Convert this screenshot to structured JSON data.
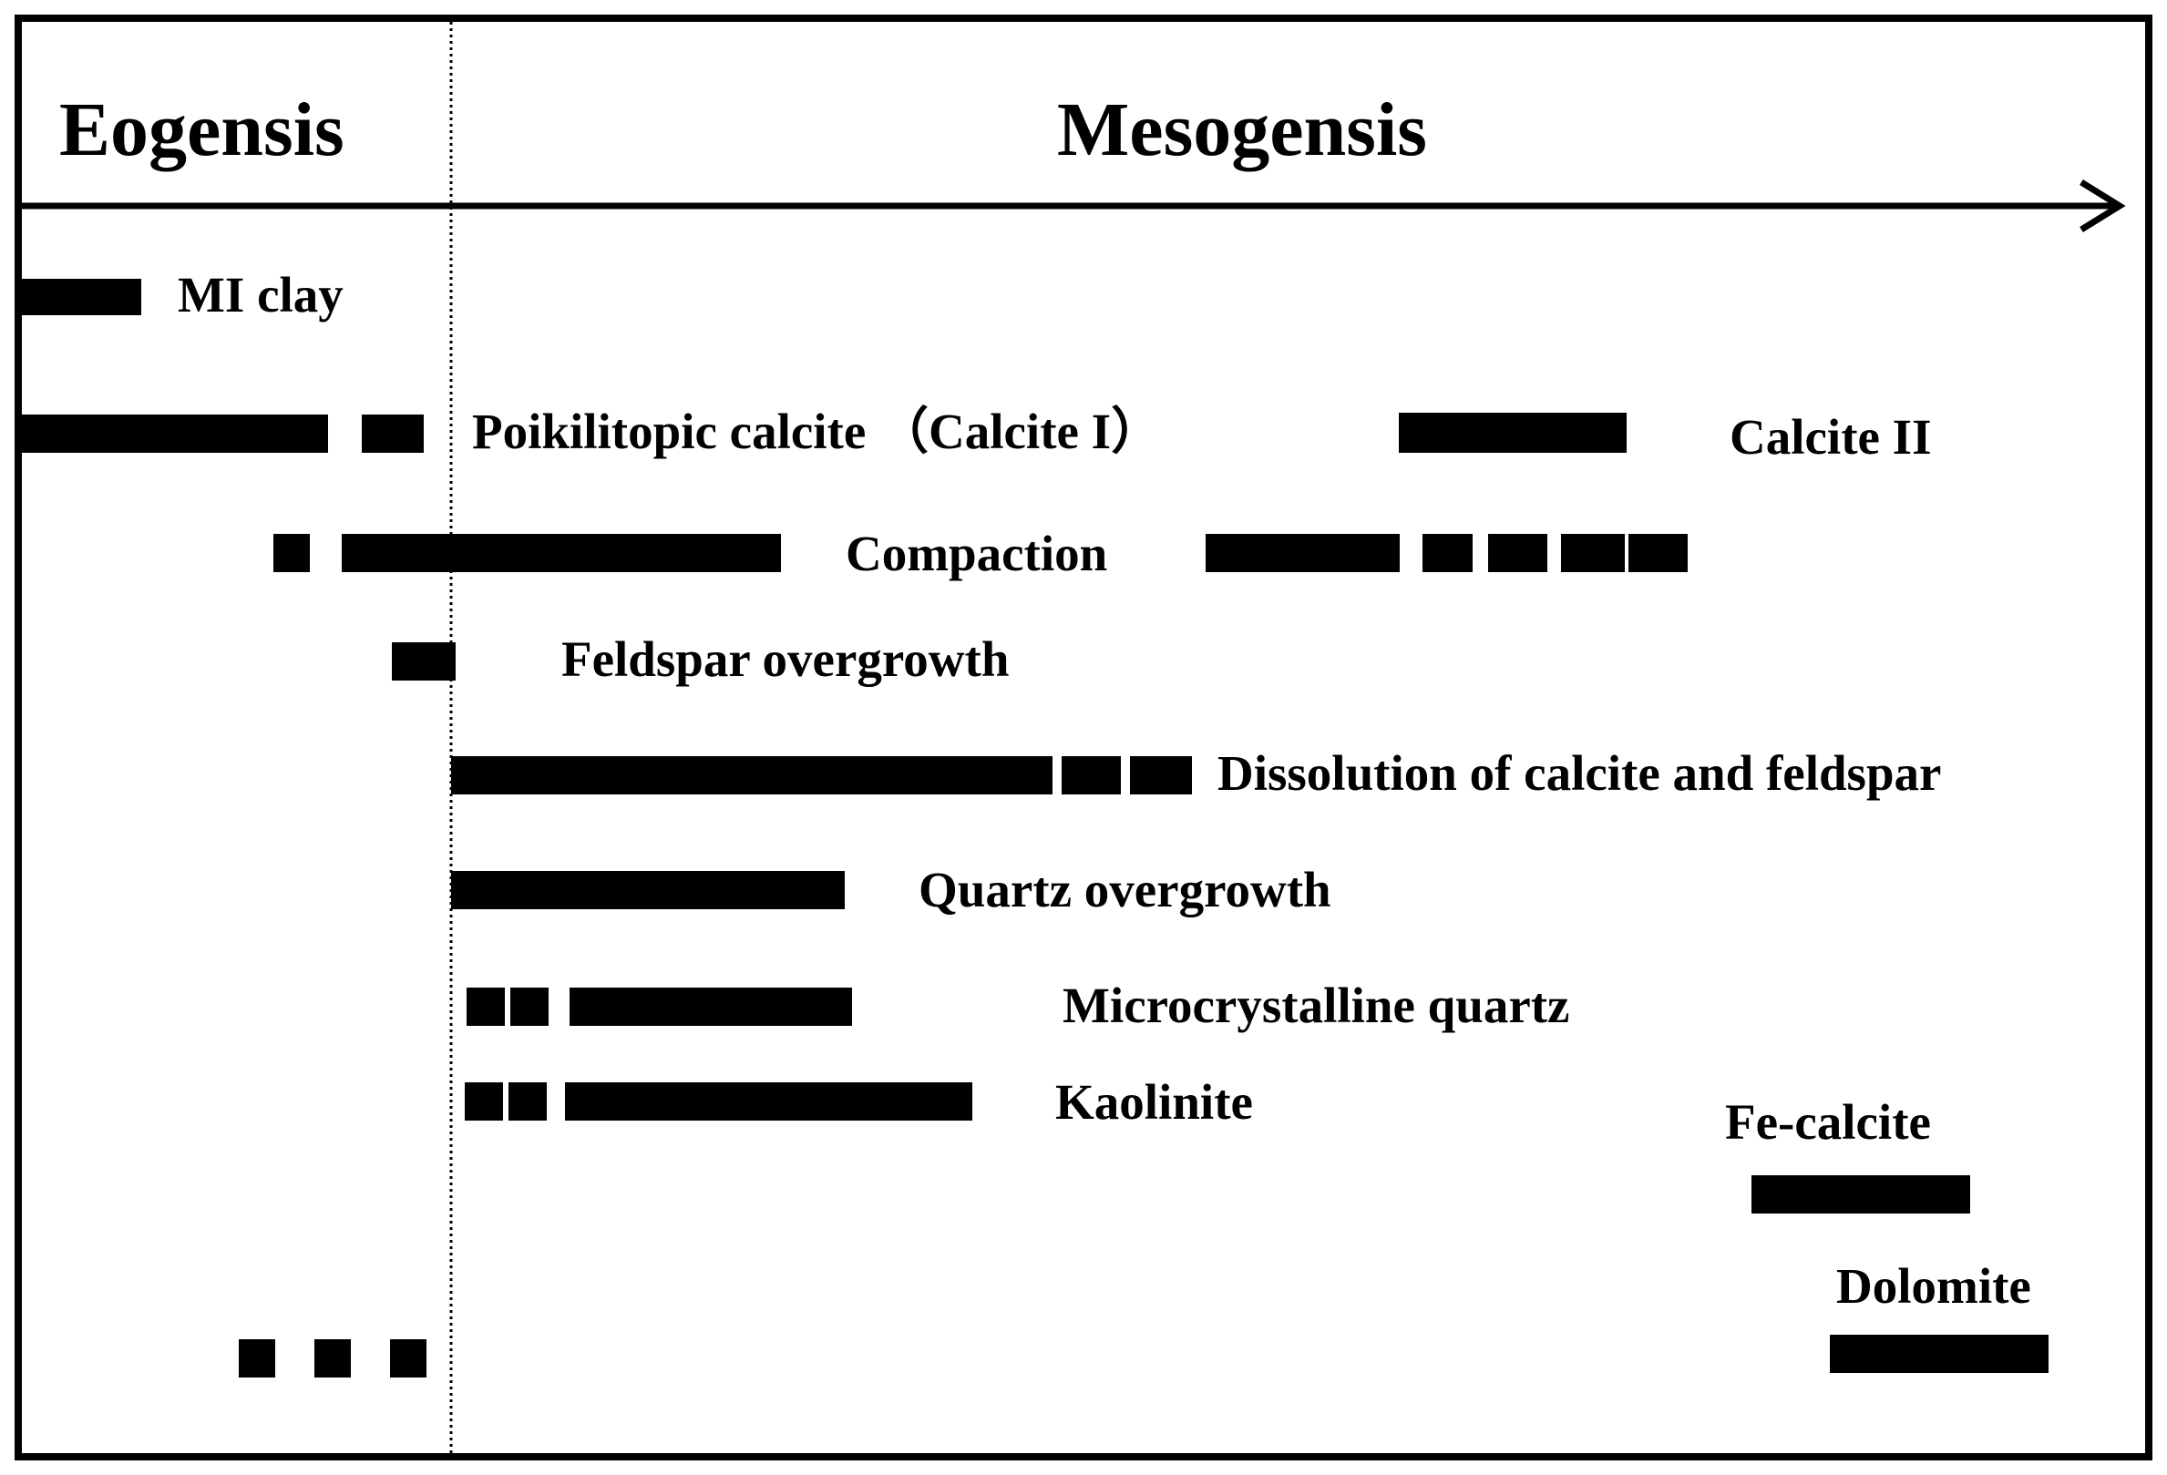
{
  "colors": {
    "ink": "#000000",
    "background": "#ffffff"
  },
  "phases": {
    "eogenesis": "Eogensis",
    "mesogenesis": "Mesogensis"
  },
  "events": [
    {
      "id": "mi-clay",
      "label": "MI clay"
    },
    {
      "id": "poikilitopic-calcite",
      "label": "Poikilitopic calcite （Calcite I）"
    },
    {
      "id": "calcite-ii",
      "label": "Calcite II"
    },
    {
      "id": "compaction",
      "label": "Compaction"
    },
    {
      "id": "feldspar-overgrowth",
      "label": "Feldspar overgrowth"
    },
    {
      "id": "dissolution",
      "label": "Dissolution of  calcite and feldspar"
    },
    {
      "id": "quartz-overgrowth",
      "label": "Quartz overgrowth"
    },
    {
      "id": "microcrystalline-quartz",
      "label": "Microcrystalline quartz"
    },
    {
      "id": "kaolinite",
      "label": "Kaolinite"
    },
    {
      "id": "fe-calcite",
      "label": "Fe-calcite"
    },
    {
      "id": "dolomite",
      "label": "Dolomite"
    }
  ]
}
